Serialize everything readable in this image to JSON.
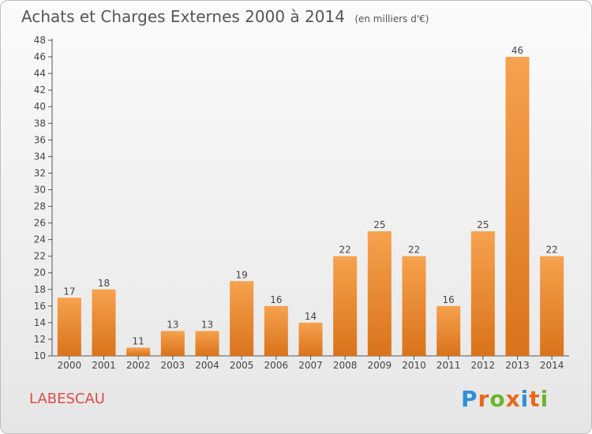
{
  "header": {
    "title": "Achats et Charges Externes 2000 à 2014",
    "subtitle": "(en milliers d'€)"
  },
  "footer": {
    "commune": "LABESCAU",
    "logo_text": "Proxiti"
  },
  "colors": {
    "bar_light": "#f6a24e",
    "bar_dark": "#d9731b",
    "commune_text": "#e04a4a",
    "logo": [
      "#2f8fd8",
      "#e8671f",
      "#6bb52c",
      "#e8671f",
      "#2f8fd8",
      "#e8671f",
      "#6bb52c"
    ]
  },
  "chart_data": {
    "type": "bar",
    "title": "Achats et Charges Externes 2000 à 2014",
    "subtitle": "(en milliers d'€)",
    "xlabel": "",
    "ylabel": "",
    "categories": [
      "2000",
      "2001",
      "2002",
      "2003",
      "2004",
      "2005",
      "2006",
      "2007",
      "2008",
      "2009",
      "2010",
      "2011",
      "2012",
      "2013",
      "2014"
    ],
    "values": [
      17,
      18,
      11,
      13,
      13,
      19,
      16,
      14,
      22,
      25,
      22,
      16,
      25,
      46,
      22
    ],
    "ylim": [
      10,
      48
    ],
    "yticks": [
      10,
      12,
      14,
      16,
      18,
      20,
      22,
      24,
      26,
      28,
      30,
      32,
      34,
      36,
      38,
      40,
      42,
      44,
      46,
      48
    ],
    "grid": false,
    "legend": "none"
  }
}
